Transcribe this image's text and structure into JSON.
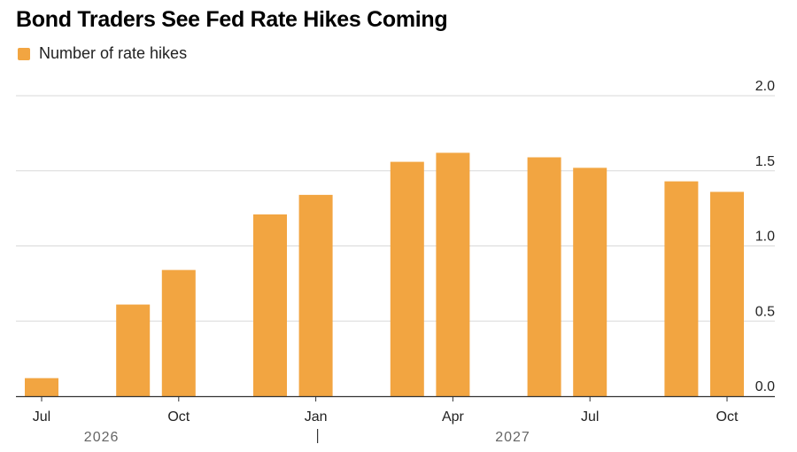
{
  "title": "Bond Traders See Fed Rate Hikes Coming",
  "colors": {
    "bar": "#f2a541",
    "grid": "#d9d9d9",
    "axis": "#333333",
    "text": "#222222",
    "year_text": "#666666"
  },
  "chart_data": {
    "type": "bar",
    "title": "Bond Traders See Fed Rate Hikes Coming",
    "legend": {
      "position": "top-left",
      "entries": [
        "Number of rate hikes"
      ]
    },
    "series": [
      {
        "name": "Number of rate hikes",
        "x": [
          "2026-07",
          "2026-08",
          "2026-09",
          "2026-10",
          "2026-11",
          "2026-12",
          "2027-01",
          "2027-02",
          "2027-03",
          "2027-04",
          "2027-05",
          "2027-06",
          "2027-07",
          "2027-08",
          "2027-09",
          "2027-10"
        ],
        "values": [
          0.12,
          null,
          0.61,
          0.84,
          null,
          1.21,
          1.34,
          null,
          1.56,
          1.62,
          null,
          1.59,
          1.52,
          null,
          1.43,
          1.36
        ]
      }
    ],
    "x_ticks": [
      {
        "x": "2026-07",
        "label": "Jul"
      },
      {
        "x": "2026-10",
        "label": "Oct"
      },
      {
        "x": "2027-01",
        "label": "Jan"
      },
      {
        "x": "2027-04",
        "label": "Apr"
      },
      {
        "x": "2027-07",
        "label": "Jul"
      },
      {
        "x": "2027-10",
        "label": "Oct"
      }
    ],
    "year_labels": [
      {
        "x": "2026-08",
        "label": "2026"
      },
      {
        "x": "2027-05",
        "label": "2027"
      }
    ],
    "year_separator": "2027-01",
    "y_ticks": [
      "0.0",
      "0.5",
      "1.0",
      "1.5",
      "2.0"
    ],
    "ylim": [
      0,
      2.0
    ],
    "y_axis_side": "right",
    "grid": true,
    "xlabel": "",
    "ylabel": ""
  }
}
